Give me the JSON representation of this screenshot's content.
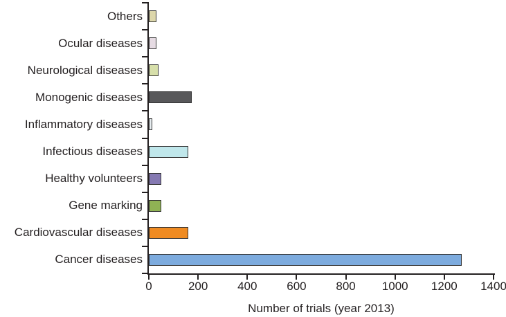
{
  "chart_data": {
    "type": "bar",
    "orientation": "horizontal",
    "title": "",
    "xlabel": "Number of trials (year 2013)",
    "ylabel": "",
    "xlim": [
      0,
      1400
    ],
    "x_ticks": [
      "0",
      "200",
      "400",
      "600",
      "800",
      "1000",
      "1200",
      "1400"
    ],
    "x_tick_values": [
      0,
      200,
      400,
      600,
      800,
      1000,
      1200,
      1400
    ],
    "grid": false,
    "legend": false,
    "categories": [
      "Others",
      "Ocular diseases",
      "Neurological diseases",
      "Monogenic diseases",
      "Inflammatory diseases",
      "Infectious diseases",
      "Healthy volunteers",
      "Gene marking",
      "Cardiovascular diseases",
      "Cancer diseases"
    ],
    "values": [
      30,
      30,
      40,
      175,
      15,
      160,
      50,
      50,
      160,
      1270
    ],
    "bar_colors": [
      "#ddd7ab",
      "#e6dbe3",
      "#d7dfaa",
      "#58585a",
      "#e7edf0",
      "#c0e7eb",
      "#8579b2",
      "#8fb254",
      "#ef8b22",
      "#7dabde"
    ],
    "bar_border_color": "#333333",
    "axis_color": "#231f20",
    "text_color": "#231f20",
    "category_order": "top-to-bottom-as-displayed"
  }
}
